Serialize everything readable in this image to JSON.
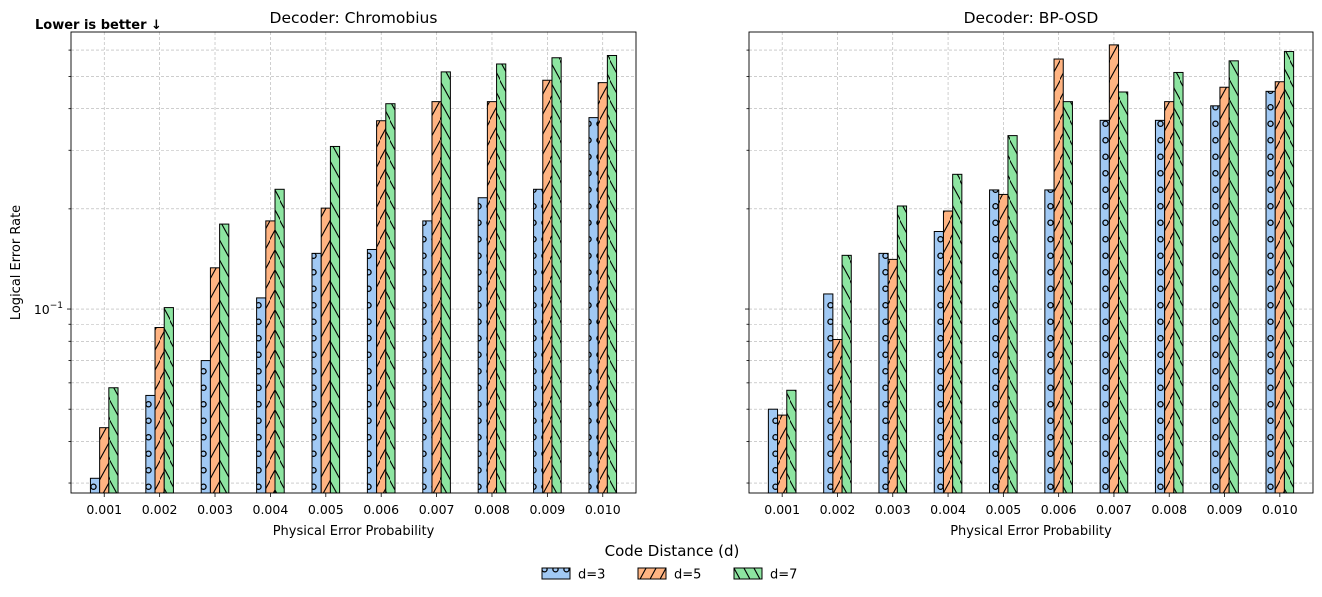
{
  "figure_note": "Lower is better ↓",
  "legend": {
    "title": "Code Distance (d)",
    "entries": [
      "d=3",
      "d=5",
      "d=7"
    ],
    "placement": "bottom-center"
  },
  "colors": {
    "d=3": "#a1c9f4",
    "d=5": "#ffb482",
    "d=7": "#8de5a1",
    "edge": "#000000",
    "grid": "#b0b0b0"
  },
  "hatches": {
    "d=3": "circles",
    "d=5": "forward-slash",
    "d=7": "back-slash"
  },
  "chart_data": [
    {
      "type": "bar",
      "title": "Decoder: Chromobius",
      "xlabel": "Physical Error Probability",
      "ylabel": "Logical Error Rate",
      "yscale": "log",
      "ylim": [
        0.028,
        0.68
      ],
      "yticks": [
        {
          "value": 0.1,
          "base": "10",
          "exp": "−1"
        }
      ],
      "grid": true,
      "categories": [
        "0.001",
        "0.002",
        "0.003",
        "0.004",
        "0.005",
        "0.006",
        "0.007",
        "0.008",
        "0.009",
        "0.010"
      ],
      "series": [
        {
          "name": "d=3",
          "values": [
            0.031,
            0.055,
            0.07,
            0.108,
            0.147,
            0.151,
            0.184,
            0.216,
            0.229,
            0.376
          ]
        },
        {
          "name": "d=5",
          "values": [
            0.044,
            0.088,
            0.133,
            0.184,
            0.201,
            0.368,
            0.42,
            0.42,
            0.487,
            0.479
          ]
        },
        {
          "name": "d=7",
          "values": [
            0.058,
            0.101,
            0.18,
            0.229,
            0.308,
            0.414,
            0.516,
            0.545,
            0.569,
            0.578
          ]
        }
      ]
    },
    {
      "type": "bar",
      "title": "Decoder: BP-OSD",
      "xlabel": "Physical Error Probability",
      "ylabel": "",
      "yscale": "log",
      "ylim": [
        0.028,
        0.68
      ],
      "yticks": [],
      "grid": true,
      "categories": [
        "0.001",
        "0.002",
        "0.003",
        "0.004",
        "0.005",
        "0.006",
        "0.007",
        "0.008",
        "0.009",
        "0.010"
      ],
      "series": [
        {
          "name": "d=3",
          "values": [
            0.05,
            0.111,
            0.147,
            0.171,
            0.228,
            0.228,
            0.369,
            0.369,
            0.408,
            0.451
          ]
        },
        {
          "name": "d=5",
          "values": [
            0.048,
            0.081,
            0.141,
            0.197,
            0.221,
            0.564,
            0.622,
            0.42,
            0.464,
            0.482
          ]
        },
        {
          "name": "d=7",
          "values": [
            0.057,
            0.145,
            0.204,
            0.254,
            0.332,
            0.42,
            0.449,
            0.514,
            0.557,
            0.594
          ]
        }
      ]
    }
  ]
}
